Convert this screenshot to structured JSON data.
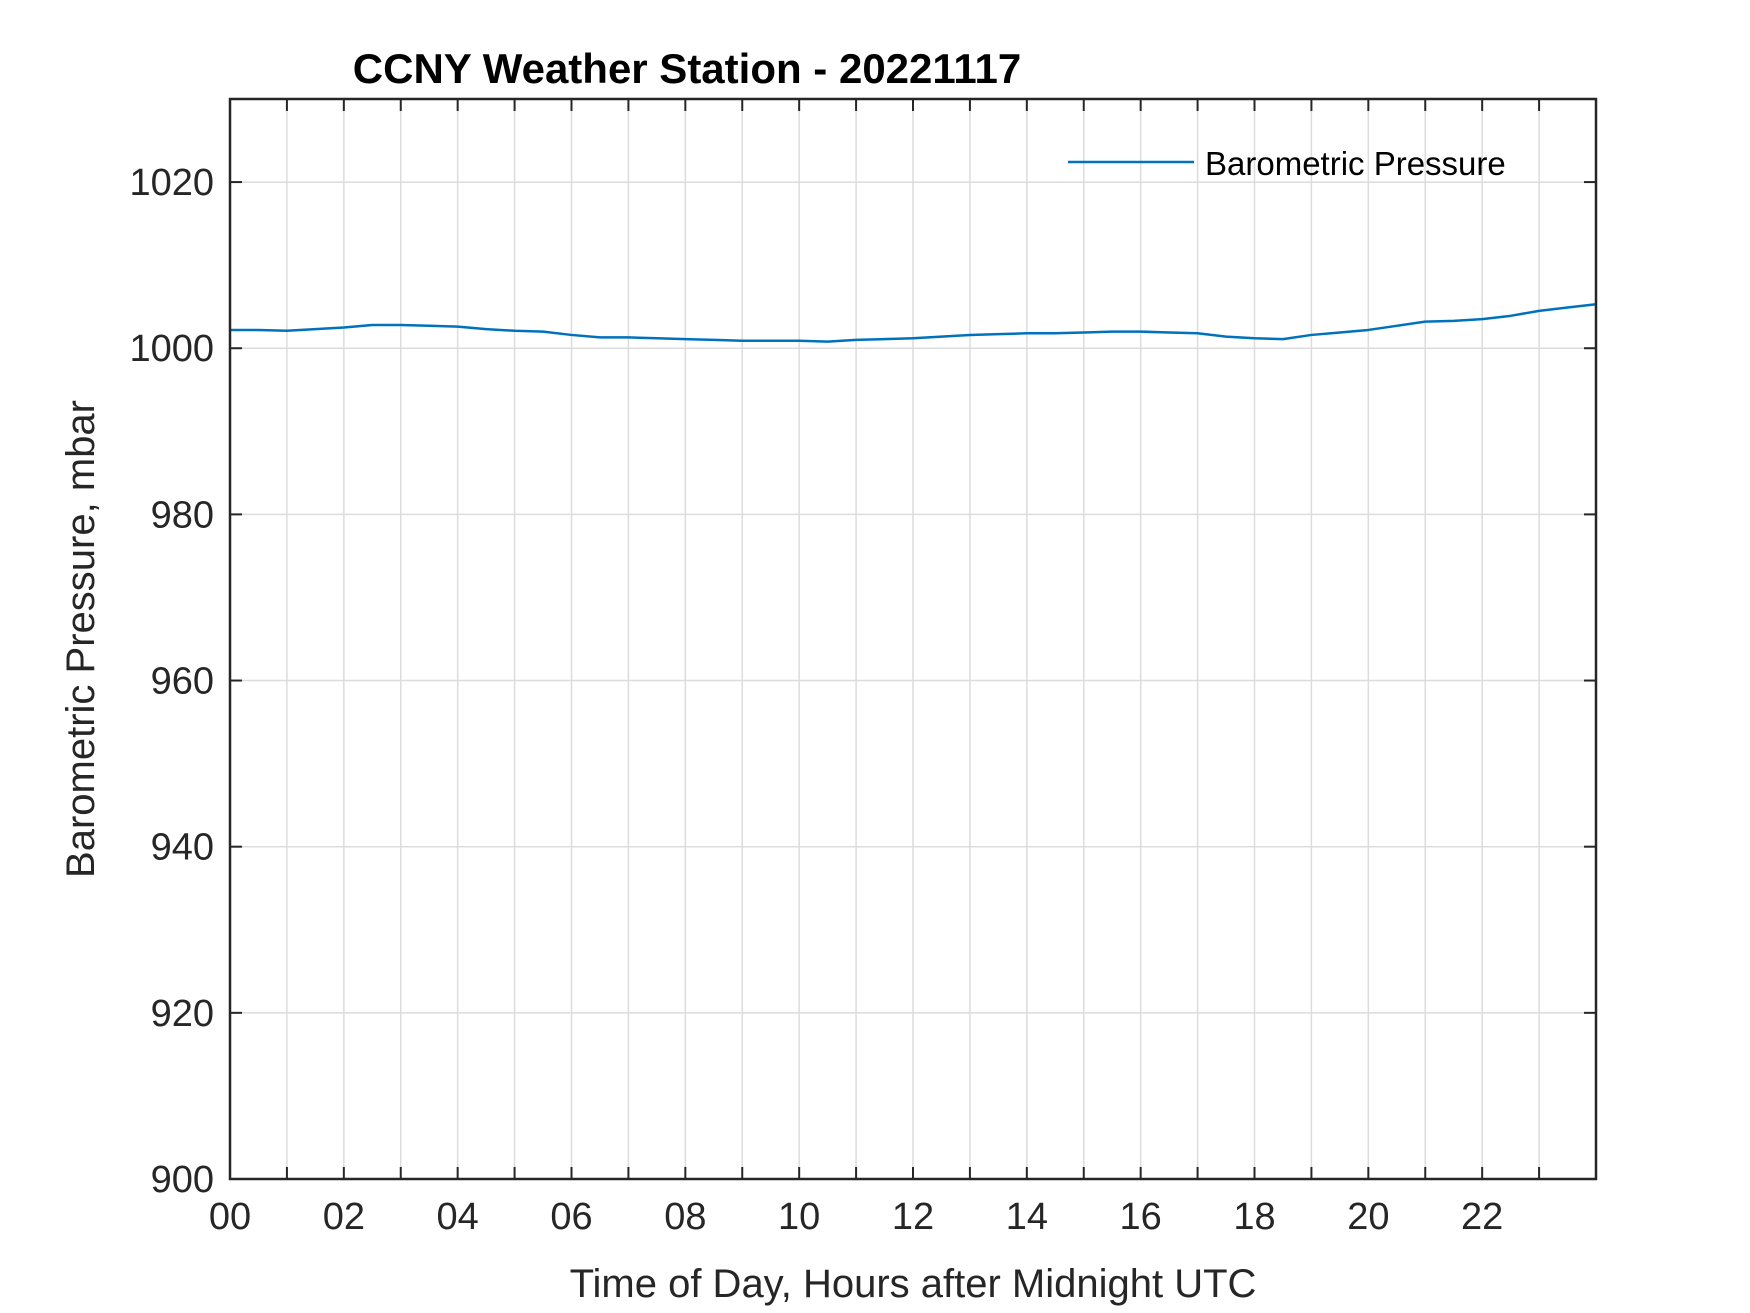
{
  "chart_data": {
    "type": "line",
    "title": "CCNY Weather Station - 20221117",
    "xlabel": "Time of Day, Hours after Midnight UTC",
    "ylabel": "Barometric Pressure, mbar",
    "xlim": [
      0,
      24
    ],
    "ylim": [
      900,
      1030
    ],
    "xticks": [
      0,
      2,
      4,
      6,
      8,
      10,
      12,
      14,
      16,
      18,
      20,
      22
    ],
    "xtick_labels": [
      "00",
      "02",
      "04",
      "06",
      "08",
      "10",
      "12",
      "14",
      "16",
      "18",
      "20",
      "22"
    ],
    "xgrid": [
      0,
      1,
      2,
      3,
      4,
      5,
      6,
      7,
      8,
      9,
      10,
      11,
      12,
      13,
      14,
      15,
      16,
      17,
      18,
      19,
      20,
      21,
      22,
      23
    ],
    "yticks": [
      900,
      920,
      940,
      960,
      980,
      1000,
      1020
    ],
    "ytick_labels": [
      "900",
      "920",
      "940",
      "960",
      "980",
      "1000",
      "1020"
    ],
    "grid": true,
    "legend": {
      "position": "top-right",
      "entries": [
        "Barometric Pressure"
      ]
    },
    "colors": {
      "series": "#0072BD",
      "grid": "#dcdcdc",
      "axis": "#262626"
    },
    "series": [
      {
        "name": "Barometric Pressure",
        "x": [
          0,
          0.5,
          1.0,
          1.5,
          2.0,
          2.5,
          3.0,
          3.5,
          4.0,
          4.5,
          5.0,
          5.5,
          6.0,
          6.5,
          7.0,
          7.5,
          8.0,
          8.5,
          9.0,
          9.5,
          10.0,
          10.5,
          11.0,
          11.5,
          12.0,
          12.5,
          13.0,
          13.5,
          14.0,
          14.5,
          15.0,
          15.5,
          16.0,
          16.5,
          17.0,
          17.5,
          18.0,
          18.5,
          19.0,
          19.5,
          20.0,
          20.5,
          21.0,
          21.5,
          22.0,
          22.5,
          23.0,
          23.5,
          24.0
        ],
        "values": [
          1002.2,
          1002.2,
          1002.1,
          1002.3,
          1002.5,
          1002.8,
          1002.8,
          1002.7,
          1002.6,
          1002.3,
          1002.1,
          1002.0,
          1001.6,
          1001.3,
          1001.3,
          1001.2,
          1001.1,
          1001.0,
          1000.9,
          1000.9,
          1000.9,
          1000.8,
          1001.0,
          1001.1,
          1001.2,
          1001.4,
          1001.6,
          1001.7,
          1001.8,
          1001.8,
          1001.9,
          1002.0,
          1002.0,
          1001.9,
          1001.8,
          1001.4,
          1001.2,
          1001.1,
          1001.6,
          1001.9,
          1002.2,
          1002.7,
          1003.2,
          1003.3,
          1003.5,
          1003.9,
          1004.5,
          1004.9,
          1005.3
        ]
      }
    ]
  }
}
